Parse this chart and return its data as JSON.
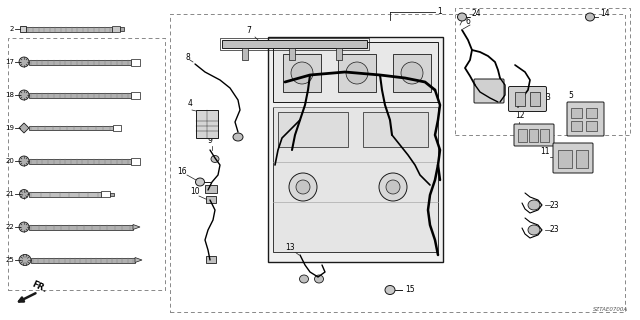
{
  "bg_color": "#ffffff",
  "diagram_code": "SZTAE0700A",
  "line_color": "#1a1a1a",
  "dashed_box_color": "#888888",
  "gray_fill": "#c8c8c8",
  "light_gray": "#e0e0e0"
}
